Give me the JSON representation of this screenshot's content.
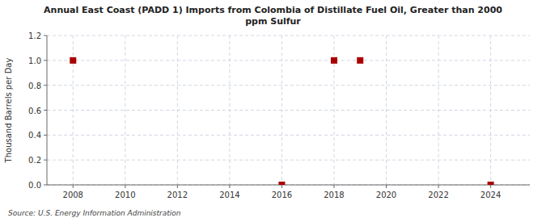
{
  "chart_data": {
    "type": "scatter",
    "title": "Annual East Coast (PADD 1) Imports from Colombia of Distillate Fuel Oil, Greater than 2000\nppm Sulfur",
    "y_label": "Thousand Barrels per Day",
    "annotations": [
      "Source: U.S. Energy Information Administration"
    ],
    "x": [
      2008,
      2016,
      2018,
      2019,
      2024
    ],
    "values": [
      1.0,
      0.0,
      1.0,
      1.0,
      0.0
    ],
    "color": "#aa0000",
    "marker": "square",
    "xlim": [
      2007,
      2025.5
    ],
    "ylim": [
      0.0,
      1.2
    ],
    "xticks": [
      2008,
      2010,
      2012,
      2014,
      2016,
      2018,
      2020,
      2022,
      2024
    ],
    "yticks": [
      {
        "value": 0.0,
        "label": "0.0"
      },
      0.2,
      0.4,
      0.6,
      0.8,
      {
        "value": 1.0,
        "label": "1.0"
      },
      1.2
    ],
    "grid": true
  }
}
